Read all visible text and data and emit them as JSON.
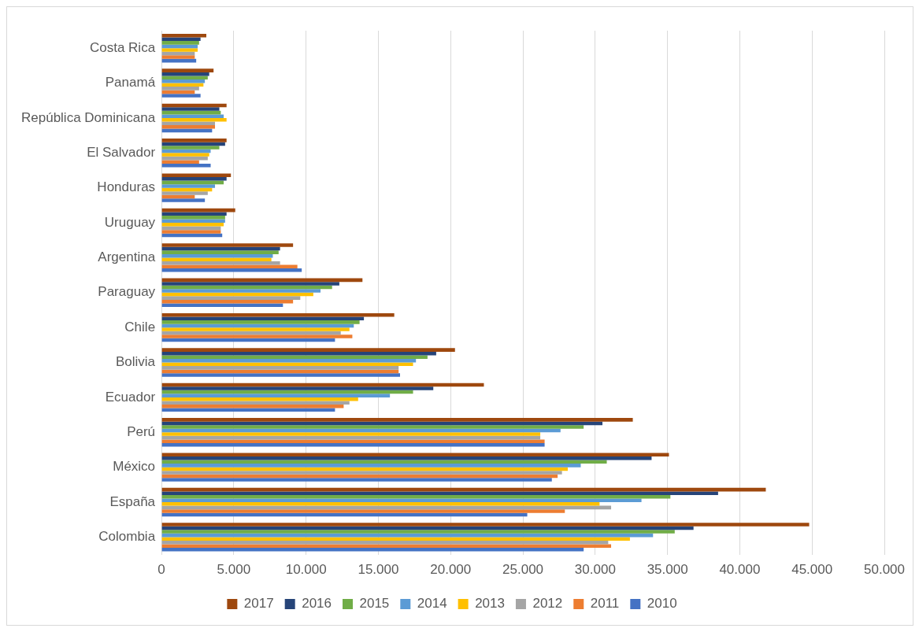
{
  "chart_data": {
    "type": "bar",
    "orientation": "horizontal",
    "categories": [
      "Costa Rica",
      "Panamá",
      "República Dominicana",
      "El Salvador",
      "Honduras",
      "Uruguay",
      "Argentina",
      "Paraguay",
      "Chile",
      "Bolivia",
      "Ecuador",
      "Perú",
      "México",
      "España",
      "Colombia"
    ],
    "series": [
      {
        "name": "2017",
        "color": "#9e480e",
        "values": [
          3100,
          3600,
          4500,
          4500,
          4800,
          5100,
          9100,
          13900,
          16100,
          20300,
          22300,
          32600,
          35100,
          41800,
          44800
        ]
      },
      {
        "name": "2016",
        "color": "#264478",
        "values": [
          2700,
          3300,
          4000,
          4400,
          4500,
          4500,
          8200,
          12300,
          14000,
          19000,
          18800,
          30500,
          33900,
          38500,
          36800
        ]
      },
      {
        "name": "2015",
        "color": "#70ad47",
        "values": [
          2600,
          3200,
          4100,
          4000,
          4300,
          4400,
          8100,
          11800,
          13700,
          18400,
          17400,
          29200,
          30800,
          35200,
          35500
        ]
      },
      {
        "name": "2014",
        "color": "#5b9bd5",
        "values": [
          2500,
          3000,
          4300,
          3400,
          3700,
          4400,
          7700,
          11000,
          13300,
          17600,
          15800,
          27600,
          29000,
          33200,
          34000
        ]
      },
      {
        "name": "2013",
        "color": "#ffc000",
        "values": [
          2500,
          2900,
          4500,
          3300,
          3500,
          4300,
          7600,
          10500,
          13000,
          17400,
          13600,
          26200,
          28100,
          30300,
          32400
        ]
      },
      {
        "name": "2012",
        "color": "#a5a5a5",
        "values": [
          2300,
          2600,
          3700,
          3200,
          3200,
          4100,
          8200,
          9600,
          12400,
          16400,
          13000,
          26200,
          27700,
          31100,
          30900
        ]
      },
      {
        "name": "2011",
        "color": "#ed7d31",
        "values": [
          2300,
          2300,
          3700,
          2600,
          2300,
          4100,
          9400,
          9100,
          13200,
          16400,
          12600,
          26500,
          27400,
          27900,
          31100
        ]
      },
      {
        "name": "2010",
        "color": "#4472c4",
        "values": [
          2400,
          2700,
          3500,
          3400,
          3000,
          4200,
          9700,
          8400,
          12000,
          16500,
          12000,
          26500,
          27000,
          25300,
          29200
        ]
      }
    ],
    "xlim": [
      0,
      50000
    ],
    "xticks": [
      0,
      {
        "value": 5000,
        "label": "5.000"
      },
      {
        "value": 10000,
        "label": "10.000"
      },
      {
        "value": 15000,
        "label": "15.000"
      },
      {
        "value": 20000,
        "label": "20.000"
      },
      {
        "value": 25000,
        "label": "25.000"
      },
      {
        "value": 30000,
        "label": "30.000"
      },
      {
        "value": 35000,
        "label": "35.000"
      },
      {
        "value": 40000,
        "label": "40.000"
      },
      {
        "value": 45000,
        "label": "45.000"
      },
      {
        "value": 50000,
        "label": "50.000"
      }
    ],
    "grid": "x",
    "legend": "bottom"
  }
}
